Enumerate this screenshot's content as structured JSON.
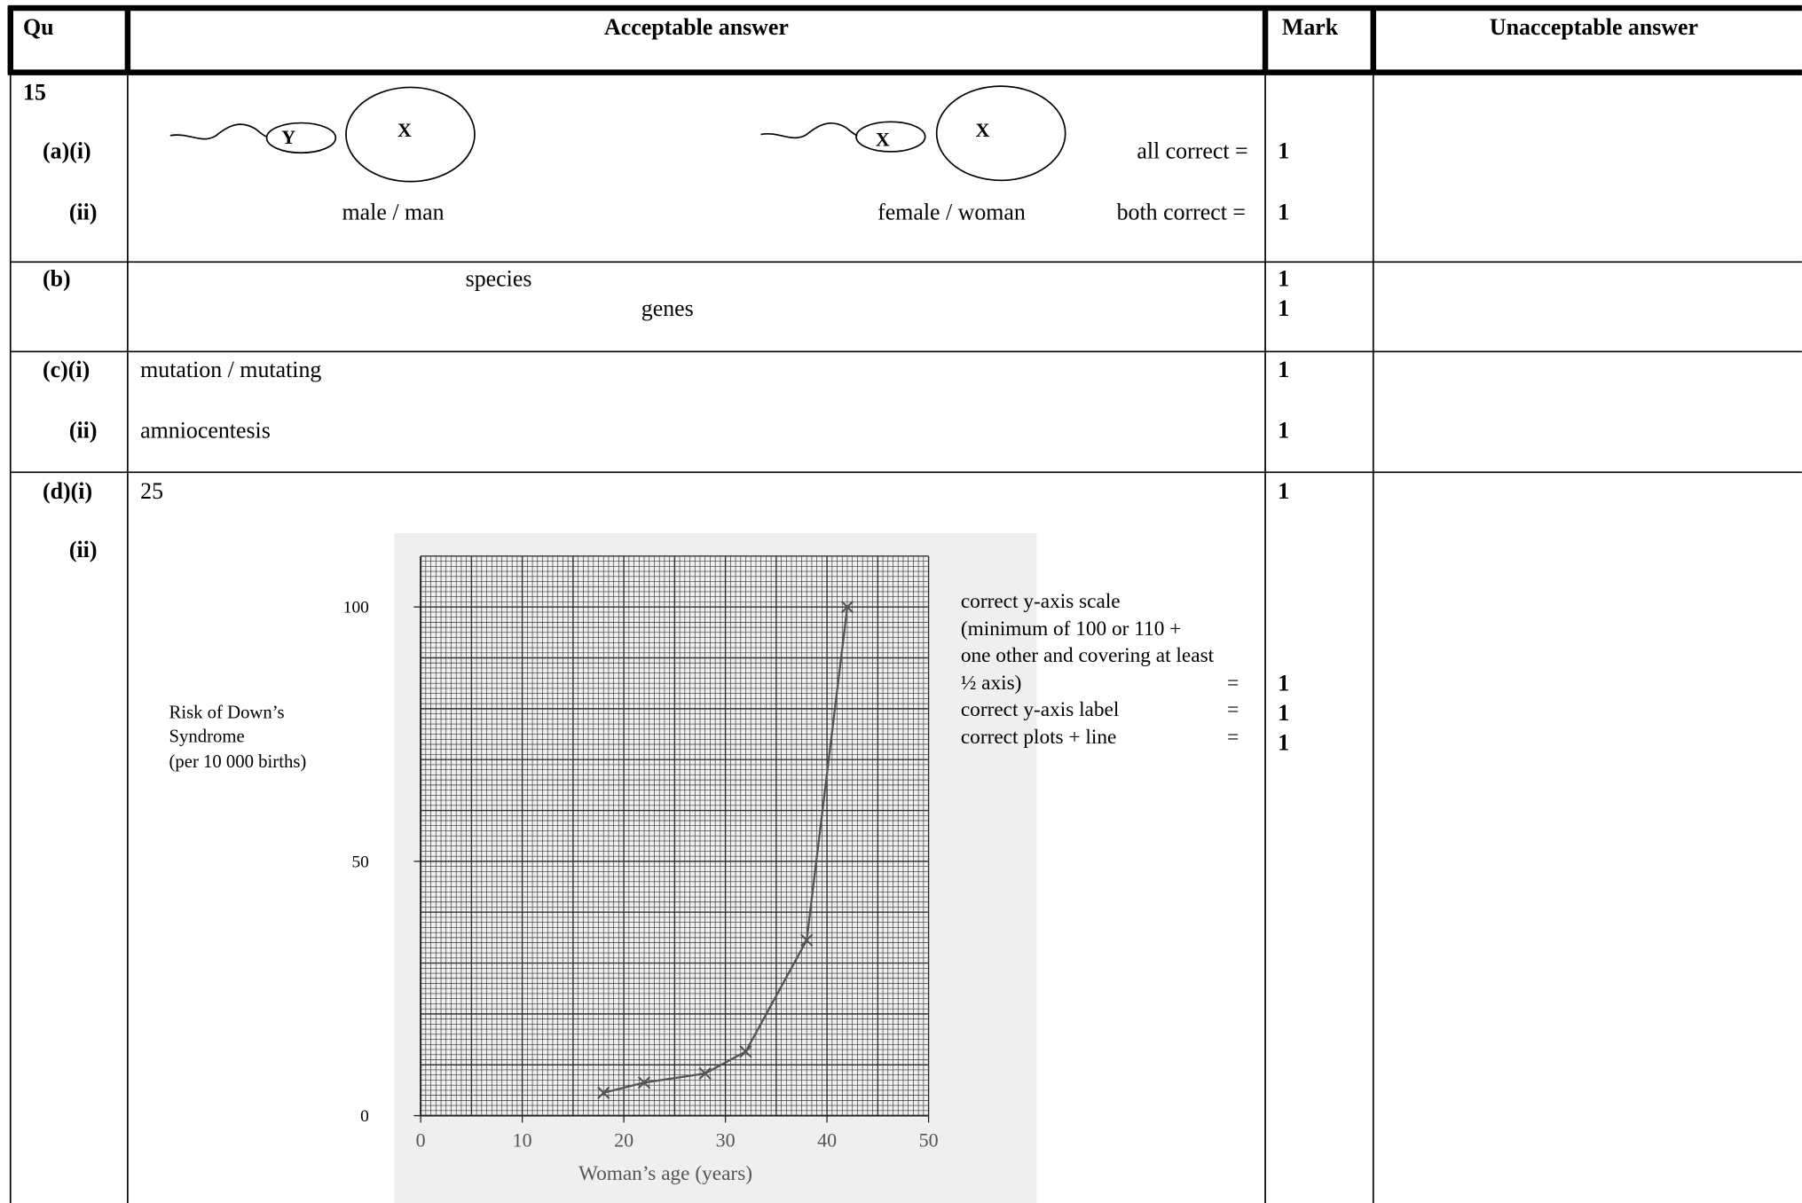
{
  "header": {
    "qu": "Qu",
    "acceptable": "Acceptable answer",
    "mark": "Mark",
    "unacceptable": "Unacceptable answer"
  },
  "rows": [
    {
      "number": 15,
      "parts": [
        "(a)(i)",
        "(ii)"
      ],
      "diagrams": [
        {
          "sperm": "Y",
          "egg": "X"
        },
        {
          "sperm": "X",
          "egg": "X"
        }
      ],
      "answers": [
        "male / man",
        "female / woman"
      ],
      "criteria": [
        "all correct =",
        "both correct ="
      ],
      "marks": [
        1,
        1
      ]
    },
    {
      "parts": [
        "(b)"
      ],
      "answers": [
        "species",
        "genes"
      ],
      "marks": [
        1,
        1
      ]
    },
    {
      "parts": [
        "(c)(i)",
        "(ii)"
      ],
      "answers": [
        "mutation / mutating",
        "amniocentesis"
      ],
      "marks": [
        1,
        1
      ]
    },
    {
      "parts": [
        "(d)(i)",
        "(ii)"
      ],
      "answers": [
        25
      ],
      "criteria": [
        "correct y-axis scale",
        "(minimum of 100 or 110 +",
        "one other and covering at least",
        "½ axis)",
        "correct y-axis label",
        "correct plots + line"
      ],
      "equals": [
        "=",
        "=",
        "="
      ],
      "marks": [
        1,
        1,
        1,
        1
      ]
    }
  ],
  "chart_data": {
    "type": "line",
    "x_label": "Woman’s age (years)",
    "y_label": [
      "Risk of Down’s",
      "Syndrome",
      "(per 10 000 births)"
    ],
    "x": [
      18,
      22,
      28,
      32,
      38,
      42
    ],
    "values": [
      4.5,
      6.5,
      8.3,
      12.6,
      34.5,
      100
    ],
    "xlim": [
      0,
      50
    ],
    "ylim": [
      0,
      110
    ],
    "xticks": [
      0,
      10,
      20,
      30,
      40,
      50
    ],
    "yticks": [
      0,
      50,
      100
    ],
    "color": "#555555",
    "grid": true
  }
}
